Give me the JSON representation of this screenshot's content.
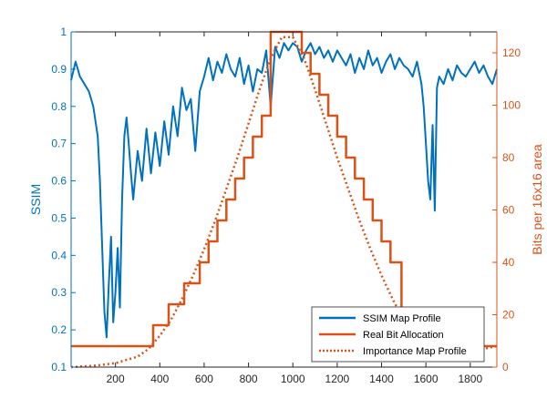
{
  "chart_data": {
    "type": "line",
    "title": "",
    "xlabel": "",
    "xlim": [
      0,
      1920
    ],
    "x_ticks": [
      200,
      400,
      600,
      800,
      1000,
      1200,
      1400,
      1600,
      1800
    ],
    "left_axis": {
      "label": "SSIM",
      "color": "#0072BD",
      "lim": [
        0.1,
        1
      ],
      "ticks": [
        0.1,
        0.2,
        0.3,
        0.4,
        0.5,
        0.6,
        0.7,
        0.8,
        0.9,
        1
      ]
    },
    "right_axis": {
      "label": "Bits per 16x16 area",
      "color": "#D95319",
      "lim": [
        0,
        128
      ],
      "ticks": [
        0,
        20,
        40,
        60,
        80,
        100,
        120
      ]
    },
    "legend": {
      "placement": "bottom-right"
    },
    "series": [
      {
        "name": "SSIM Map Profile",
        "axis": "left",
        "style": "solid",
        "color": "#0072BD",
        "x": [
          0,
          20,
          40,
          60,
          80,
          100,
          120,
          130,
          140,
          150,
          160,
          170,
          180,
          190,
          200,
          210,
          220,
          230,
          240,
          250,
          260,
          270,
          280,
          300,
          320,
          340,
          360,
          380,
          400,
          420,
          440,
          460,
          480,
          500,
          520,
          540,
          560,
          580,
          600,
          620,
          640,
          660,
          680,
          700,
          720,
          740,
          760,
          780,
          800,
          820,
          840,
          860,
          880,
          900,
          920,
          940,
          960,
          980,
          1000,
          1020,
          1040,
          1060,
          1080,
          1100,
          1120,
          1140,
          1160,
          1180,
          1200,
          1220,
          1240,
          1260,
          1280,
          1300,
          1320,
          1340,
          1360,
          1380,
          1400,
          1420,
          1440,
          1460,
          1480,
          1500,
          1520,
          1540,
          1560,
          1580,
          1590,
          1600,
          1610,
          1620,
          1630,
          1640,
          1650,
          1660,
          1680,
          1700,
          1720,
          1740,
          1760,
          1780,
          1800,
          1820,
          1840,
          1860,
          1880,
          1900,
          1920
        ],
        "y": [
          0.87,
          0.92,
          0.88,
          0.86,
          0.84,
          0.8,
          0.72,
          0.6,
          0.42,
          0.25,
          0.18,
          0.32,
          0.45,
          0.22,
          0.3,
          0.42,
          0.26,
          0.55,
          0.72,
          0.77,
          0.7,
          0.62,
          0.55,
          0.68,
          0.6,
          0.74,
          0.62,
          0.73,
          0.64,
          0.76,
          0.67,
          0.8,
          0.72,
          0.85,
          0.79,
          0.82,
          0.68,
          0.84,
          0.88,
          0.93,
          0.87,
          0.92,
          0.89,
          0.94,
          0.9,
          0.88,
          0.93,
          0.86,
          0.91,
          0.84,
          0.9,
          0.89,
          0.95,
          0.8,
          0.96,
          0.93,
          0.97,
          0.95,
          0.97,
          0.96,
          0.92,
          0.95,
          0.97,
          0.94,
          0.96,
          0.93,
          0.95,
          0.92,
          0.95,
          0.93,
          0.91,
          0.94,
          0.89,
          0.93,
          0.9,
          0.95,
          0.91,
          0.93,
          0.89,
          0.92,
          0.94,
          0.9,
          0.93,
          0.91,
          0.9,
          0.88,
          0.92,
          0.86,
          0.8,
          0.7,
          0.6,
          0.55,
          0.75,
          0.52,
          0.85,
          0.88,
          0.86,
          0.9,
          0.87,
          0.91,
          0.89,
          0.88,
          0.9,
          0.92,
          0.89,
          0.91,
          0.88,
          0.86,
          0.9
        ]
      },
      {
        "name": "Real Bit Allocation",
        "axis": "right",
        "style": "step",
        "color": "#D95319",
        "x": [
          0,
          370,
          440,
          510,
          580,
          620,
          660,
          700,
          740,
          780,
          820,
          860,
          900,
          1040,
          1080,
          1120,
          1160,
          1200,
          1240,
          1280,
          1320,
          1360,
          1400,
          1440,
          1490,
          1920
        ],
        "y": [
          8,
          16,
          24,
          32,
          40,
          48,
          56,
          64,
          72,
          80,
          88,
          96,
          128,
          120,
          112,
          104,
          96,
          88,
          80,
          72,
          64,
          56,
          48,
          40,
          8,
          8
        ]
      },
      {
        "name": "Importance Map Profile",
        "axis": "right",
        "style": "dotted",
        "color": "#D95319",
        "x": [
          0,
          100,
          200,
          300,
          350,
          400,
          450,
          500,
          550,
          600,
          650,
          700,
          750,
          800,
          850,
          900,
          950,
          1000,
          1050,
          1100,
          1150,
          1200,
          1250,
          1300,
          1350,
          1400,
          1450,
          1500,
          1550,
          1600,
          1700,
          1800,
          1920
        ],
        "y": [
          0,
          0.5,
          1.5,
          4,
          7,
          12,
          18,
          26,
          35,
          45,
          56,
          68,
          80,
          93,
          106,
          118,
          126,
          126,
          118,
          106,
          93,
          80,
          68,
          56,
          45,
          35,
          26,
          18,
          12,
          8,
          5,
          6,
          8
        ]
      }
    ]
  }
}
